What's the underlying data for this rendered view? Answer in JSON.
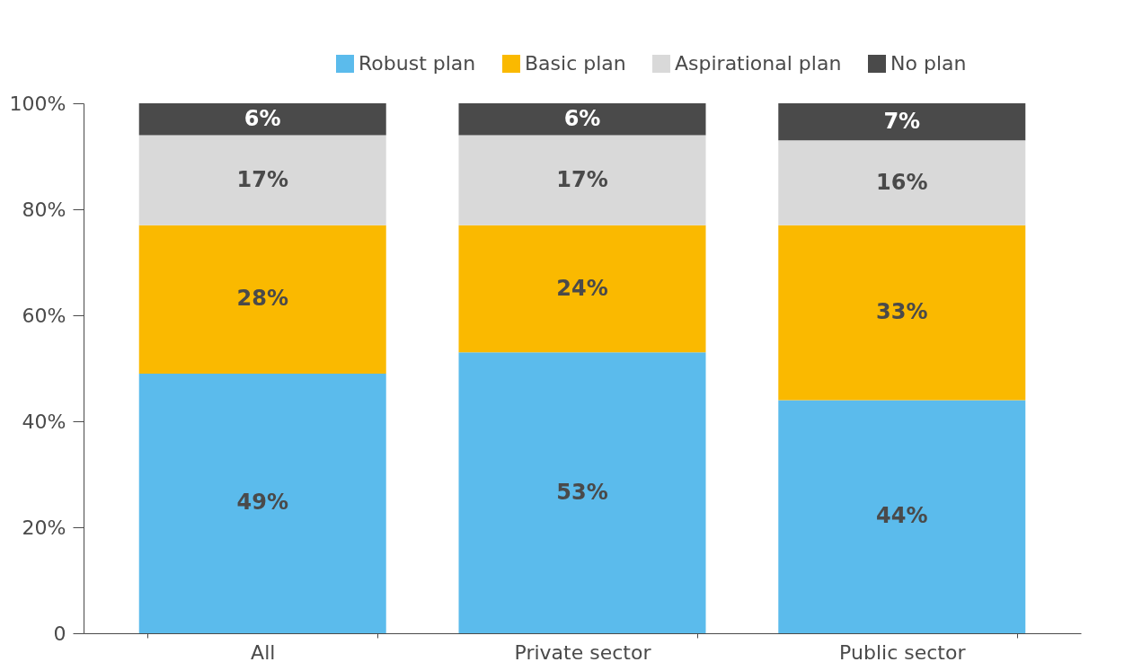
{
  "chart_data": {
    "type": "bar",
    "stacked": true,
    "categories": [
      "All",
      "Private sector",
      "Public sector"
    ],
    "series": [
      {
        "name": "Robust plan",
        "color": "#5bbbec",
        "values": [
          49,
          53,
          44
        ],
        "value_labels": [
          "49%",
          "53%",
          "44%"
        ]
      },
      {
        "name": "Basic plan",
        "color": "#fab900",
        "values": [
          28,
          24,
          33
        ],
        "value_labels": [
          "28%",
          "24%",
          "33%"
        ]
      },
      {
        "name": "Aspirational plan",
        "color": "#d9d9d9",
        "values": [
          17,
          17,
          16
        ],
        "value_labels": [
          "17%",
          "17%",
          "16%"
        ]
      },
      {
        "name": "No plan",
        "color": "#4a4a4a",
        "values": [
          6,
          6,
          7
        ],
        "value_labels": [
          "6%",
          "6%",
          "7%"
        ]
      }
    ],
    "ylim": [
      0,
      100
    ],
    "yticks": [
      0,
      {
        "value": 20,
        "label": "20%"
      },
      {
        "value": 40,
        "label": "40%"
      },
      {
        "value": 60,
        "label": "60%"
      },
      {
        "value": 80,
        "label": "80%"
      },
      {
        "value": 100,
        "label": "100%"
      }
    ],
    "grid": false,
    "legend": "top right"
  }
}
